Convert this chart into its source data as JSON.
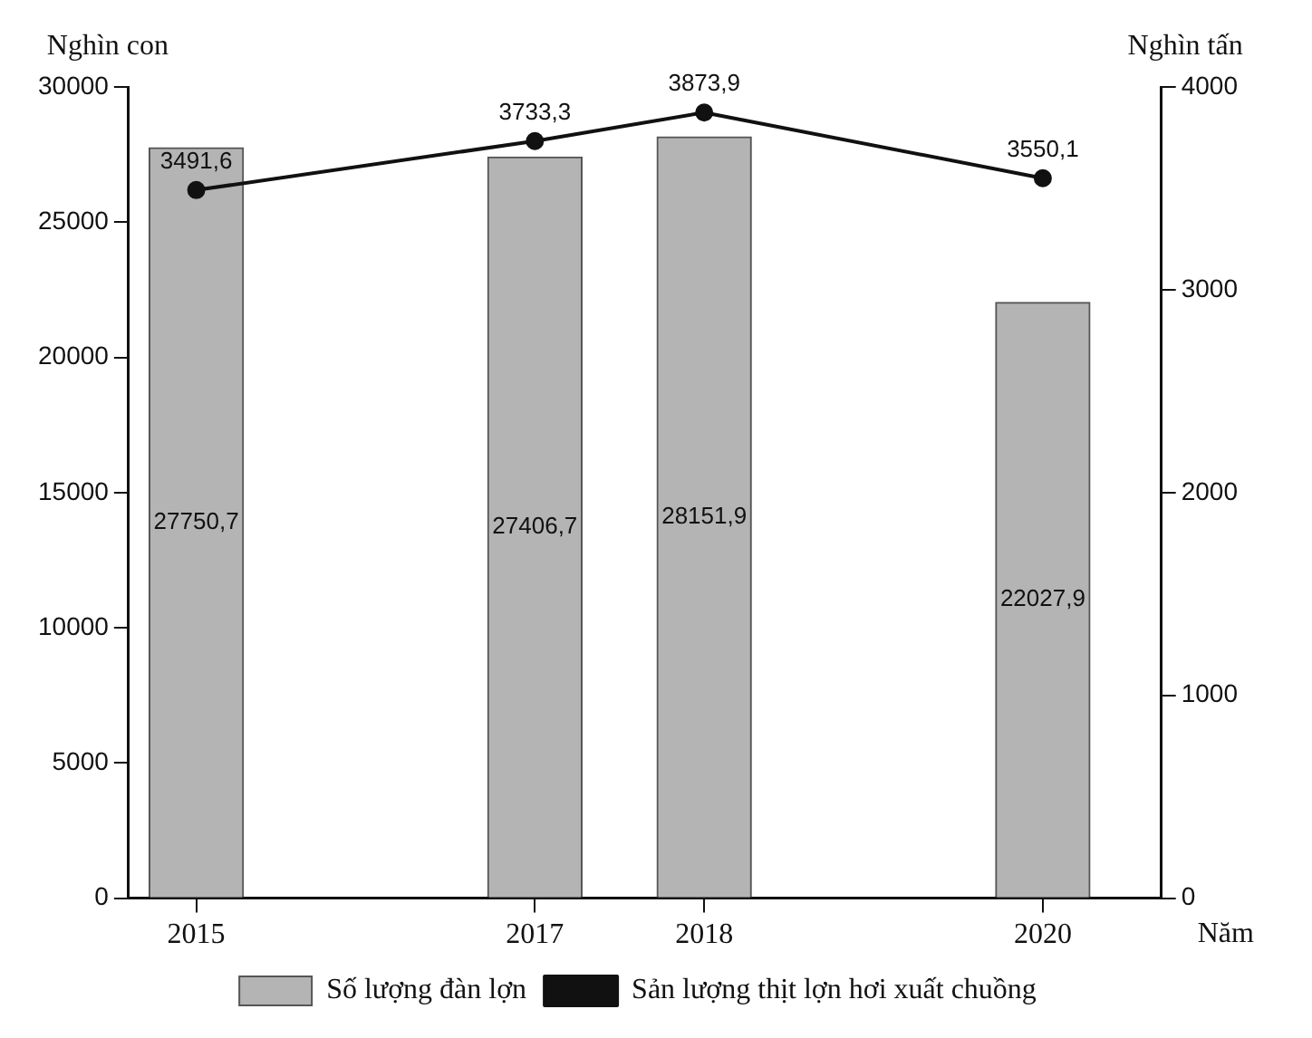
{
  "chart_data": {
    "type": "bar",
    "ylabel": "Nghìn con",
    "y2label": "Nghìn tấn",
    "xlabel": "Năm",
    "x": [
      2015,
      2017,
      2018,
      2020
    ],
    "xlim": [
      2014.6,
      2020.7
    ],
    "xticks": [
      2015,
      2017,
      2018,
      2020
    ],
    "series": [
      {
        "name": "Số lượng đàn lợn",
        "color": "#b4b4b4",
        "values": [
          27750.7,
          27406.7,
          28151.9,
          22027.9
        ],
        "value_labels": [
          "27750,7",
          "27406,7",
          "28151,9",
          "22027,9"
        ]
      },
      {
        "name": "Sản lượng thịt lợn hơi xuất chuồng",
        "type": "line",
        "axis": "y2",
        "color": "#111111",
        "values": [
          3491.6,
          3733.3,
          3873.9,
          3550.1
        ],
        "value_labels": [
          "3491,6",
          "3733,3",
          "3873,9",
          "3550,1"
        ]
      }
    ],
    "ylim": [
      0,
      30000
    ],
    "yticks": [
      0,
      5000,
      10000,
      15000,
      20000,
      25000,
      30000
    ],
    "y2lim": [
      0,
      4000
    ],
    "y2ticks": [
      0,
      1000,
      2000,
      3000,
      4000
    ],
    "grid": false,
    "legend": "bottom",
    "marker": "circle",
    "line_style": "solid"
  }
}
